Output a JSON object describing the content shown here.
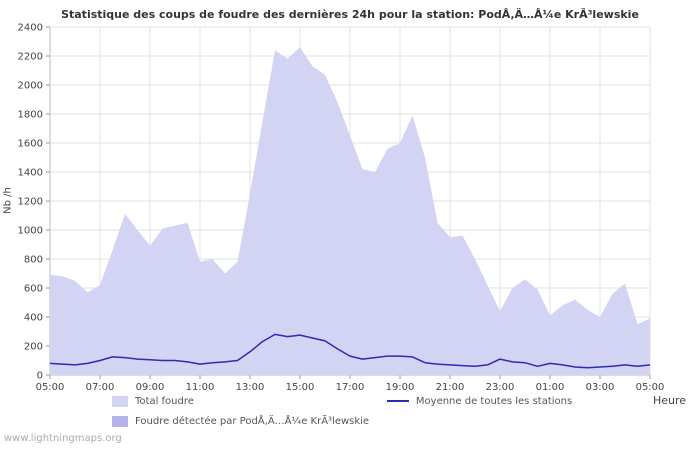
{
  "footer": {
    "watermark": "www.lightningmaps.org"
  },
  "chart_data": {
    "type": "area",
    "title": "Statistique des coups de foudre des dernières 24h pour la station: PodÅ‚Ä…Å¼e KrÃ³lewskie",
    "xlabel": "Heure",
    "ylabel": "Nb /h",
    "ylim": [
      0,
      2400
    ],
    "grid": true,
    "legend_position": "bottom",
    "colors": {
      "grid": "#e2e2e2",
      "tick_text": "#444444",
      "area_total": "#d3d3f3",
      "area_station": "#b4b4ea",
      "line_average": "#2b2bb4"
    },
    "yticks": [
      0,
      200,
      400,
      600,
      800,
      1000,
      1200,
      1400,
      1600,
      1800,
      2000,
      2200,
      2400
    ],
    "xticks": [
      {
        "t": 5,
        "label": "05:00"
      },
      {
        "t": 7,
        "label": "07:00"
      },
      {
        "t": 9,
        "label": "09:00"
      },
      {
        "t": 11,
        "label": "11:00"
      },
      {
        "t": 13,
        "label": "13:00"
      },
      {
        "t": 15,
        "label": "15:00"
      },
      {
        "t": 17,
        "label": "17:00"
      },
      {
        "t": 19,
        "label": "19:00"
      },
      {
        "t": 21,
        "label": "21:00"
      },
      {
        "t": 23,
        "label": "23:00"
      },
      {
        "t": 25,
        "label": "01:00"
      },
      {
        "t": 27,
        "label": "03:00"
      },
      {
        "t": 29,
        "label": "05:00"
      }
    ],
    "x": [
      5,
      5.5,
      6,
      6.5,
      7,
      7.5,
      8,
      8.5,
      9,
      9.5,
      10,
      10.5,
      11,
      11.5,
      12,
      12.5,
      13,
      13.5,
      14,
      14.5,
      15,
      15.5,
      16,
      16.5,
      17,
      17.5,
      18,
      18.5,
      19,
      19.5,
      20,
      20.5,
      21,
      21.5,
      22,
      22.5,
      23,
      23.5,
      24,
      24.5,
      25,
      25.5,
      26,
      26.5,
      27,
      27.5,
      28,
      28.5,
      29
    ],
    "series": [
      {
        "name": "Total foudre",
        "type": "area",
        "color": "#d3d3f3",
        "values": [
          690,
          680,
          650,
          570,
          620,
          860,
          1110,
          1000,
          890,
          1010,
          1030,
          1050,
          780,
          800,
          700,
          780,
          1250,
          1750,
          2240,
          2180,
          2260,
          2130,
          2070,
          1880,
          1650,
          1420,
          1400,
          1560,
          1600,
          1790,
          1500,
          1050,
          950,
          960,
          800,
          620,
          440,
          600,
          660,
          590,
          410,
          480,
          520,
          450,
          400,
          560,
          630,
          350,
          390
        ]
      },
      {
        "name": "Foudre détectée par PodÅ‚Ä…Å¼e KrÃ³lewskie",
        "type": "area",
        "color": "#b4b4ea",
        "values": [
          0,
          0,
          0,
          0,
          0,
          0,
          0,
          0,
          0,
          0,
          0,
          0,
          0,
          0,
          0,
          0,
          0,
          0,
          0,
          0,
          0,
          0,
          0,
          0,
          0,
          0,
          0,
          0,
          0,
          0,
          0,
          0,
          0,
          0,
          0,
          0,
          0,
          0,
          0,
          0,
          0,
          0,
          0,
          0,
          0,
          0,
          0,
          0,
          0
        ]
      },
      {
        "name": "Moyenne de toutes les stations",
        "type": "line",
        "color": "#2b2bb4",
        "values": [
          80,
          75,
          70,
          80,
          100,
          125,
          120,
          110,
          105,
          100,
          100,
          90,
          75,
          85,
          90,
          100,
          160,
          230,
          280,
          265,
          275,
          255,
          235,
          180,
          130,
          110,
          120,
          130,
          130,
          125,
          85,
          75,
          70,
          65,
          60,
          70,
          110,
          90,
          85,
          60,
          80,
          70,
          55,
          50,
          55,
          60,
          70,
          60,
          70
        ]
      }
    ]
  }
}
